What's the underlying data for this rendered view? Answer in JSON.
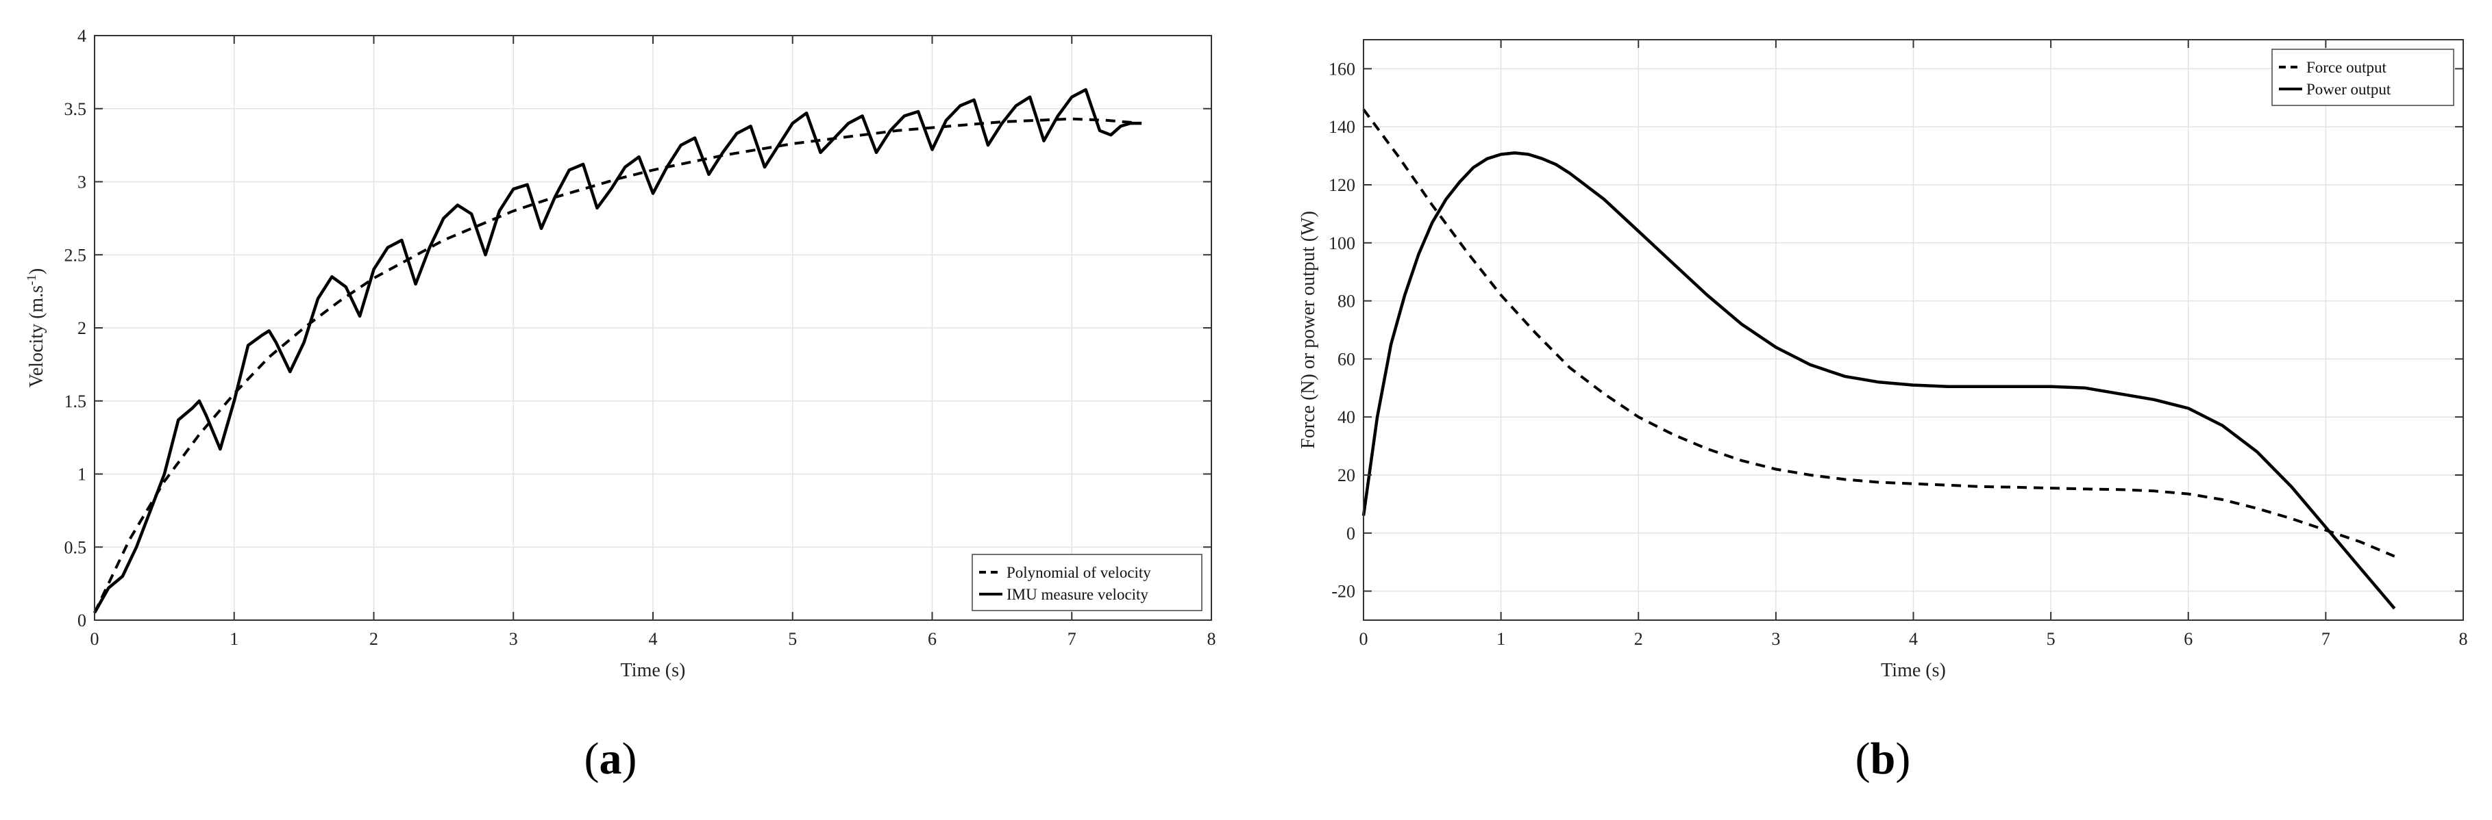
{
  "chart_data": [
    {
      "type": "line",
      "panel_label": "(a)",
      "panel_letter": "a",
      "xlabel": "Time (s)",
      "ylabel_main": "Velocity (m.s",
      "ylabel_sup": "-1",
      "ylabel_end": ")",
      "xlim": [
        0,
        8
      ],
      "ylim": [
        0,
        4
      ],
      "xticks": [
        0,
        1,
        2,
        3,
        4,
        5,
        6,
        7,
        8
      ],
      "yticks": [
        0,
        0.5,
        1,
        1.5,
        2,
        2.5,
        3,
        3.5,
        4
      ],
      "grid": true,
      "legend_position": "bottom-right",
      "series": [
        {
          "name": "Polynomial of velocity",
          "style": "dashed",
          "x": [
            0,
            0.25,
            0.5,
            0.75,
            1,
            1.25,
            1.5,
            1.75,
            2,
            2.25,
            2.5,
            2.75,
            3,
            3.25,
            3.5,
            3.75,
            4,
            4.25,
            4.5,
            4.75,
            5,
            5.25,
            5.5,
            5.75,
            6,
            6.25,
            6.5,
            6.75,
            7,
            7.25,
            7.5
          ],
          "y": [
            0.05,
            0.55,
            0.95,
            1.27,
            1.55,
            1.8,
            2.0,
            2.18,
            2.34,
            2.47,
            2.6,
            2.7,
            2.8,
            2.88,
            2.95,
            3.02,
            3.08,
            3.13,
            3.18,
            3.22,
            3.26,
            3.29,
            3.32,
            3.35,
            3.37,
            3.39,
            3.41,
            3.42,
            3.43,
            3.42,
            3.4
          ]
        },
        {
          "name": "IMU measure velocity",
          "style": "solid",
          "x": [
            0,
            0.1,
            0.2,
            0.3,
            0.4,
            0.5,
            0.6,
            0.7,
            0.75,
            0.8,
            0.9,
            1.0,
            1.1,
            1.2,
            1.25,
            1.3,
            1.4,
            1.5,
            1.6,
            1.7,
            1.8,
            1.9,
            2.0,
            2.1,
            2.2,
            2.3,
            2.4,
            2.5,
            2.6,
            2.7,
            2.8,
            2.9,
            3.0,
            3.1,
            3.2,
            3.3,
            3.4,
            3.5,
            3.6,
            3.7,
            3.8,
            3.9,
            4.0,
            4.1,
            4.2,
            4.3,
            4.4,
            4.5,
            4.6,
            4.7,
            4.8,
            4.9,
            5.0,
            5.1,
            5.2,
            5.3,
            5.4,
            5.5,
            5.6,
            5.7,
            5.8,
            5.9,
            6.0,
            6.1,
            6.2,
            6.3,
            6.4,
            6.5,
            6.6,
            6.7,
            6.8,
            6.9,
            7.0,
            7.1,
            7.2,
            7.28,
            7.35,
            7.42,
            7.5
          ],
          "y": [
            0.05,
            0.22,
            0.3,
            0.5,
            0.75,
            1.0,
            1.37,
            1.45,
            1.5,
            1.4,
            1.17,
            1.5,
            1.88,
            1.95,
            1.98,
            1.9,
            1.7,
            1.9,
            2.2,
            2.35,
            2.28,
            2.08,
            2.4,
            2.55,
            2.6,
            2.3,
            2.55,
            2.75,
            2.84,
            2.78,
            2.5,
            2.8,
            2.95,
            2.98,
            2.68,
            2.9,
            3.08,
            3.12,
            2.82,
            2.95,
            3.1,
            3.17,
            2.92,
            3.1,
            3.25,
            3.3,
            3.05,
            3.2,
            3.33,
            3.38,
            3.1,
            3.25,
            3.4,
            3.47,
            3.2,
            3.3,
            3.4,
            3.45,
            3.2,
            3.35,
            3.45,
            3.48,
            3.22,
            3.42,
            3.52,
            3.56,
            3.25,
            3.4,
            3.52,
            3.58,
            3.28,
            3.45,
            3.58,
            3.63,
            3.35,
            3.32,
            3.38,
            3.4,
            3.4
          ]
        }
      ]
    },
    {
      "type": "line",
      "panel_label": "(b)",
      "panel_letter": "b",
      "xlabel": "Time (s)",
      "ylabel": "Force (N) or power output (W)",
      "xlim": [
        0,
        8
      ],
      "ylim": [
        -30,
        170
      ],
      "xticks": [
        0,
        1,
        2,
        3,
        4,
        5,
        6,
        7,
        8
      ],
      "yticks": [
        -20,
        0,
        20,
        40,
        60,
        80,
        100,
        120,
        140,
        160
      ],
      "grid": true,
      "legend_position": "top-right",
      "series": [
        {
          "name": "Force output",
          "style": "dashed",
          "x": [
            0,
            0.25,
            0.5,
            0.75,
            1,
            1.25,
            1.5,
            1.75,
            2,
            2.25,
            2.5,
            2.75,
            3,
            3.25,
            3.5,
            3.75,
            4,
            4.25,
            4.5,
            4.75,
            5,
            5.25,
            5.5,
            5.75,
            6,
            6.25,
            6.5,
            6.75,
            7,
            7.25,
            7.5
          ],
          "y": [
            146,
            130,
            113,
            97,
            82,
            69,
            57,
            48,
            40,
            34,
            29,
            25,
            22,
            20,
            18.5,
            17.5,
            17,
            16.5,
            16,
            15.8,
            15.5,
            15.2,
            15,
            14.5,
            13.5,
            11.5,
            8.5,
            5,
            1,
            -3,
            -8
          ]
        },
        {
          "name": "Power output",
          "style": "solid",
          "x": [
            0,
            0.1,
            0.2,
            0.3,
            0.4,
            0.5,
            0.6,
            0.7,
            0.8,
            0.9,
            1.0,
            1.1,
            1.2,
            1.3,
            1.4,
            1.5,
            1.75,
            2.0,
            2.25,
            2.5,
            2.75,
            3.0,
            3.25,
            3.5,
            3.75,
            4.0,
            4.25,
            4.5,
            4.75,
            5.0,
            5.25,
            5.5,
            5.75,
            6.0,
            6.25,
            6.5,
            6.75,
            7.0,
            7.25,
            7.5
          ],
          "y": [
            6,
            40,
            65,
            82,
            96,
            107,
            115,
            121,
            126,
            129,
            130.5,
            131,
            130.5,
            129,
            127,
            124,
            115,
            104,
            93,
            82,
            72,
            64,
            58,
            54,
            52,
            51,
            50.5,
            50.5,
            50.5,
            50.5,
            50,
            48,
            46,
            43,
            37,
            28,
            16,
            2,
            -12,
            -26
          ]
        }
      ]
    }
  ]
}
